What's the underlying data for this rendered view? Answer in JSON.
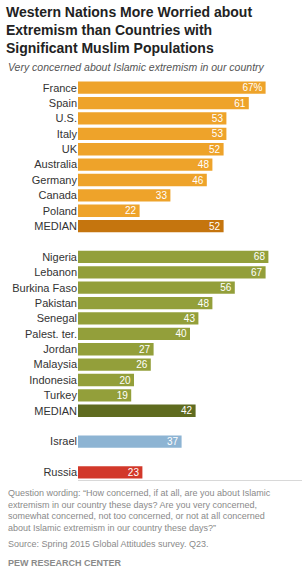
{
  "chart_data": {
    "type": "bar",
    "orientation": "horizontal",
    "title": "Western Nations More Worried about Extremism than Countries with Significant Muslim Populations",
    "subtitle": "Very concerned about Islamic extremism in our country",
    "annotations": [
      "Question wording: “How concerned, if at all, are you about Islamic extremism in our country these days? Are you very concerned, somewhat concerned, not too concerned, or not at all concerned about Islamic extremism in our country these days?”",
      "Source: Spring 2015 Global Attitudes survey. Q23.",
      "PEW RESEARCH CENTER"
    ],
    "categories": [
      "France",
      "Spain",
      "U.S.",
      "Italy",
      "UK",
      "Australia",
      "Germany",
      "Canada",
      "Poland",
      "MEDIAN",
      null,
      "Nigeria",
      "Lebanon",
      "Burkina Faso",
      "Pakistan",
      "Senegal",
      "Palest. ter.",
      "Jordan",
      "Malaysia",
      "Indonesia",
      "Turkey",
      "MEDIAN",
      null,
      "Israel",
      null,
      "Russia"
    ],
    "values": [
      67,
      61,
      53,
      53,
      52,
      48,
      46,
      33,
      22,
      52,
      null,
      68,
      67,
      56,
      48,
      43,
      40,
      27,
      26,
      20,
      19,
      42,
      null,
      37,
      null,
      23
    ],
    "value_labels": [
      "67%",
      "61",
      "53",
      "53",
      "52",
      "48",
      "46",
      "33",
      "22",
      "52",
      null,
      "68",
      "67",
      "56",
      "48",
      "43",
      "40",
      "27",
      "26",
      "20",
      "19",
      "42",
      null,
      "37",
      null,
      "23"
    ],
    "colors": [
      "#eea32a",
      "#eea32a",
      "#eea32a",
      "#eea32a",
      "#eea32a",
      "#eea32a",
      "#eea32a",
      "#eea32a",
      "#eea32a",
      "#c5750e",
      null,
      "#939f3a",
      "#939f3a",
      "#939f3a",
      "#939f3a",
      "#939f3a",
      "#939f3a",
      "#939f3a",
      "#939f3a",
      "#939f3a",
      "#939f3a",
      "#5f6b1f",
      null,
      "#8db4d3",
      null,
      "#d2382a"
    ],
    "xlim": [
      0,
      80
    ],
    "grid": false,
    "data_labels": true,
    "tick_labels": "y"
  }
}
